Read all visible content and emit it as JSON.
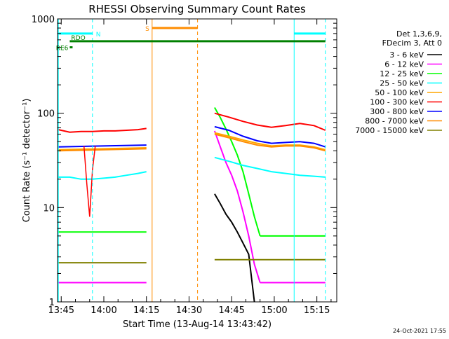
{
  "chart_data": {
    "type": "line",
    "title": "RHESSI Observing Summary Count Rates",
    "xlabel": "Start Time (13-Aug-14 13:43:42)",
    "ylabel": "Count Rate (s⁻¹ detector⁻¹)",
    "x_scale": "time",
    "y_scale": "log",
    "xlim": [
      "13:43:42",
      "15:22:00"
    ],
    "ylim": [
      1,
      1000
    ],
    "x_ticks": [
      "13:45",
      "14:00",
      "14:15",
      "14:30",
      "14:45",
      "15:00",
      "15:15"
    ],
    "y_ticks": [
      {
        "value": 1,
        "label": "1"
      },
      {
        "value": 10,
        "label": "10"
      },
      {
        "value": 100,
        "label": "100"
      },
      {
        "value": 1000,
        "label": "1000"
      }
    ],
    "grid": false,
    "legend_position": "right",
    "legend_header": [
      "Det 1,3,6,9,",
      "FDecim 3, Att 0"
    ],
    "series": [
      {
        "name": "3 - 6 keV",
        "color": "#000000",
        "segments": [
          {
            "t": [
              "14:39",
              "14:41",
              "14:43",
              "14:45",
              "14:47",
              "14:49",
              "14:51",
              "14:53"
            ],
            "v": [
              14,
              11,
              8.5,
              7,
              5.5,
              4.2,
              3.2,
              1.0
            ]
          }
        ]
      },
      {
        "name": "6 - 12 keV",
        "color": "#ff00ff",
        "segments": [
          {
            "t": [
              "13:44",
              "14:15"
            ],
            "v": [
              1.6,
              1.6
            ]
          },
          {
            "t": [
              "14:39",
              "14:41",
              "14:43",
              "14:45",
              "14:47",
              "14:49",
              "14:51",
              "14:53",
              "14:55"
            ],
            "v": [
              65,
              44,
              30,
              22,
              15,
              9,
              5,
              2.5,
              1.6
            ]
          },
          {
            "t": [
              "14:55",
              "15:18"
            ],
            "v": [
              1.6,
              1.6
            ]
          }
        ]
      },
      {
        "name": "12 - 25 keV",
        "color": "#00ff00",
        "segments": [
          {
            "t": [
              "13:44",
              "14:15"
            ],
            "v": [
              5.5,
              5.5
            ]
          },
          {
            "t": [
              "14:39",
              "14:41",
              "14:43",
              "14:45",
              "14:47",
              "14:49",
              "14:51",
              "14:53",
              "14:55"
            ],
            "v": [
              115,
              90,
              68,
              50,
              36,
              24,
              14,
              8,
              5
            ]
          },
          {
            "t": [
              "14:55",
              "15:18"
            ],
            "v": [
              5,
              5
            ]
          }
        ]
      },
      {
        "name": "25 - 50 keV",
        "color": "#00ffff",
        "segments": [
          {
            "t": [
              "13:44",
              "13:48",
              "13:52",
              "13:56",
              "14:00",
              "14:04",
              "14:08",
              "14:12",
              "14:15"
            ],
            "v": [
              21,
              21,
              20,
              20,
              20.5,
              21,
              22,
              23,
              24
            ]
          },
          {
            "t": [
              "14:39",
              "14:44",
              "14:49",
              "14:54",
              "14:59",
              "15:04",
              "15:09",
              "15:14",
              "15:18"
            ],
            "v": [
              34,
              31,
              28,
              26,
              24,
              23,
              22,
              21.5,
              21
            ]
          }
        ]
      },
      {
        "name": "50 - 100 keV",
        "color": "#ffa500",
        "segments": [
          {
            "t": [
              "13:44",
              "14:15"
            ],
            "v": [
              41,
              43
            ]
          },
          {
            "t": [
              "14:39",
              "14:44",
              "14:49",
              "14:54",
              "14:59",
              "15:04",
              "15:09",
              "15:14",
              "15:18"
            ],
            "v": [
              62,
              57,
              52,
              48,
              45,
              46,
              46,
              44,
              41
            ]
          }
        ]
      },
      {
        "name": "100 - 300 keV",
        "color": "#ff0000",
        "segments": [
          {
            "t": [
              "13:44",
              "13:48",
              "13:52",
              "13:56",
              "14:00",
              "14:04",
              "14:08",
              "14:12",
              "14:15"
            ],
            "v": [
              67,
              63,
              64,
              64,
              65,
              65,
              66,
              67,
              69
            ]
          },
          {
            "t": [
              "14:39",
              "14:44",
              "14:49",
              "14:54",
              "14:59",
              "15:04",
              "15:09",
              "15:14",
              "15:18"
            ],
            "v": [
              100,
              91,
              82,
              75,
              71,
              74,
              78,
              74,
              66
            ]
          }
        ]
      },
      {
        "name": "300 - 800 keV",
        "color": "#0000ff",
        "segments": [
          {
            "t": [
              "13:44",
              "14:15"
            ],
            "v": [
              44,
              46
            ]
          },
          {
            "t": [
              "14:39",
              "14:44",
              "14:49",
              "14:54",
              "14:59",
              "15:04",
              "15:09",
              "15:14",
              "15:18"
            ],
            "v": [
              72,
              66,
              57,
              51,
              48,
              49,
              50,
              48,
              44
            ]
          }
        ]
      },
      {
        "name": "800 - 7000 keV",
        "color": "#ff8c00",
        "segments": [
          {
            "t": [
              "13:44",
              "14:15"
            ],
            "v": [
              40,
              42
            ]
          },
          {
            "t": [
              "14:39",
              "14:44",
              "14:49",
              "14:54",
              "14:59",
              "15:04",
              "15:09",
              "15:14",
              "15:18"
            ],
            "v": [
              60,
              55,
              50,
              46,
              44,
              45,
              45,
              43,
              40
            ]
          }
        ]
      },
      {
        "name": "7000 - 15000 keV",
        "color": "#808000",
        "segments": [
          {
            "t": [
              "13:44",
              "14:15"
            ],
            "v": [
              2.6,
              2.6
            ]
          },
          {
            "t": [
              "14:39",
              "15:18"
            ],
            "v": [
              2.8,
              2.8
            ]
          }
        ]
      }
    ],
    "attenuator_dip": {
      "t": [
        "13:53",
        "13:54",
        "13:55",
        "13:56",
        "13:57"
      ],
      "v": [
        45,
        18,
        8,
        25,
        45
      ]
    },
    "events": [
      {
        "type": "solid",
        "t": "13:44",
        "color": "#00ffff"
      },
      {
        "type": "dashed",
        "t": "13:56",
        "color": "#00ffff"
      },
      {
        "type": "solid",
        "t": "14:17",
        "color": "#ff8c00"
      },
      {
        "type": "dashed",
        "t": "14:33",
        "color": "#ff8c00"
      },
      {
        "type": "solid",
        "t": "15:07",
        "color": "#00ffff"
      },
      {
        "type": "dashed",
        "t": "15:18",
        "color": "#00ffff"
      }
    ],
    "interval_bars": [
      {
        "label": "N",
        "color": "#00ffff",
        "segments": [
          [
            "13:44",
            "13:56"
          ],
          [
            "15:07",
            "15:18"
          ]
        ],
        "level": 700
      },
      {
        "label": "S",
        "color": "#ff8c00",
        "segments": [
          [
            "14:17",
            "14:33"
          ]
        ],
        "level": 800
      },
      {
        "label": "RDO",
        "color": "#008000",
        "segments": [
          [
            "13:48",
            "15:18"
          ]
        ],
        "level": 580
      },
      {
        "label": "RE6",
        "color": "#008000",
        "segments": [
          [
            "13:48",
            "13:49"
          ]
        ],
        "level": 500
      }
    ],
    "footer_timestamp": "24-Oct-2021 17:55"
  }
}
